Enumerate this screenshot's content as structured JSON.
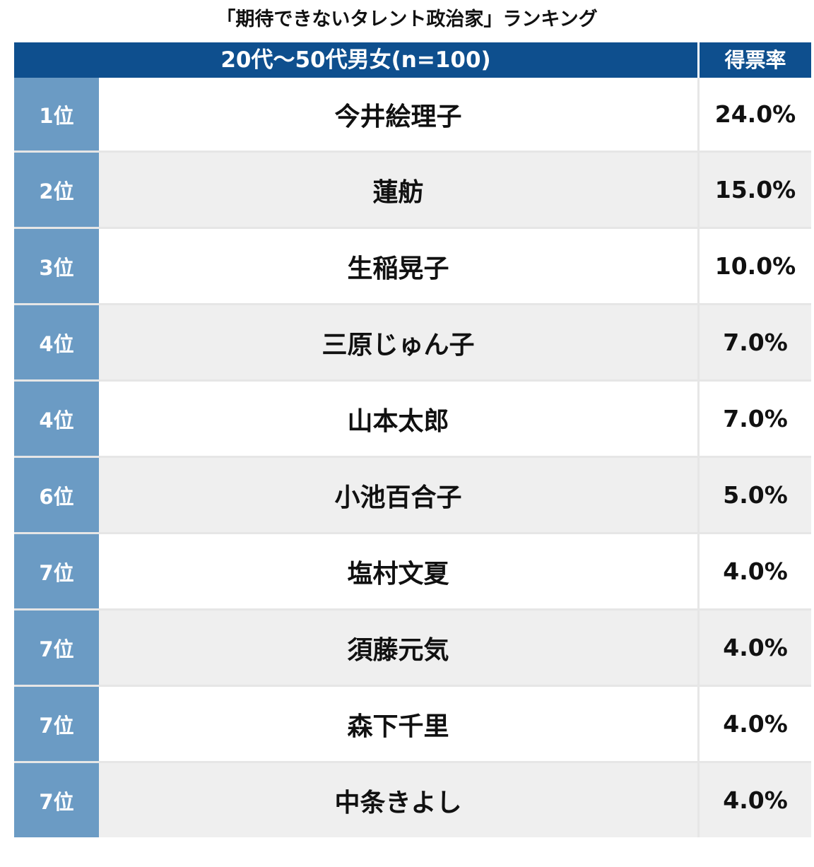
{
  "chart_data": {
    "type": "table",
    "title": "「期待できないタレント政治家」ランキング",
    "group_header": "20代〜50代男女(n=100)",
    "value_header": "得票率",
    "rows": [
      {
        "rank": "1位",
        "name": "今井絵理子",
        "value": "24.0%"
      },
      {
        "rank": "2位",
        "name": "蓮舫",
        "value": "15.0%"
      },
      {
        "rank": "3位",
        "name": "生稲晃子",
        "value": "10.0%"
      },
      {
        "rank": "4位",
        "name": "三原じゅん子",
        "value": "7.0%"
      },
      {
        "rank": "4位",
        "name": "山本太郎",
        "value": "7.0%"
      },
      {
        "rank": "6位",
        "name": "小池百合子",
        "value": "5.0%"
      },
      {
        "rank": "7位",
        "name": "塩村文夏",
        "value": "4.0%"
      },
      {
        "rank": "7位",
        "name": "須藤元気",
        "value": "4.0%"
      },
      {
        "rank": "7位",
        "name": "森下千里",
        "value": "4.0%"
      },
      {
        "rank": "7位",
        "name": "中条きよし",
        "value": "4.0%"
      }
    ]
  },
  "colors": {
    "header_bg": "#0e4f8e",
    "rank_bg": "#6b9bc4",
    "stripe_bg": "#efefef"
  }
}
